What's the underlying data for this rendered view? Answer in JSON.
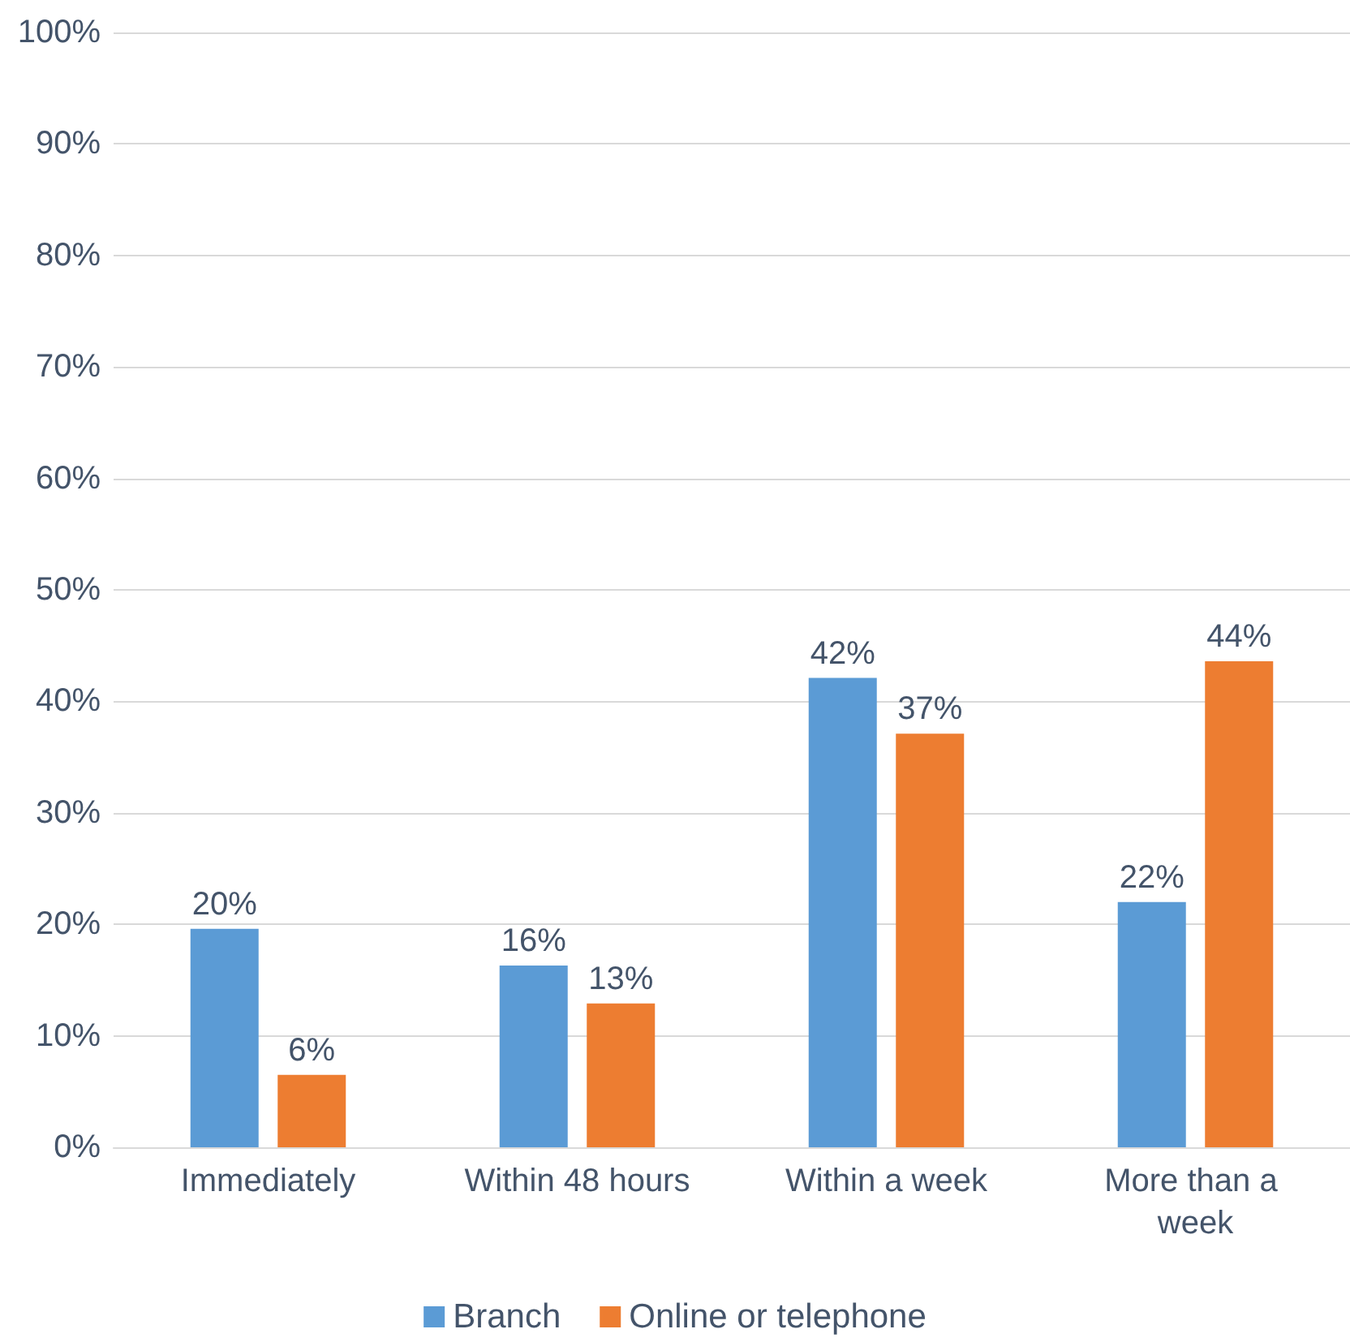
{
  "chart_data": {
    "type": "bar",
    "categories": [
      "Immediately",
      "Within 48 hours",
      "Within a week",
      "More than a week"
    ],
    "series": [
      {
        "name": "Branch",
        "color": "#5b9bd5",
        "values": [
          19.6,
          16.3,
          42.1,
          22
        ],
        "value_labels": [
          "20%",
          "16%",
          "42%",
          "22%"
        ]
      },
      {
        "name": "Online or telephone",
        "color": "#ed7d31",
        "values": [
          6.5,
          12.9,
          37.1,
          43.6
        ],
        "value_labels": [
          "6%",
          "13%",
          "37%",
          "44%"
        ]
      }
    ],
    "ylim": [
      0,
      100
    ],
    "yticks": [
      {
        "value": 0,
        "label": "0%"
      },
      {
        "value": 10,
        "label": "10%"
      },
      {
        "value": 20,
        "label": "20%"
      },
      {
        "value": 30,
        "label": "30%"
      },
      {
        "value": 40,
        "label": "40%"
      },
      {
        "value": 50,
        "label": "50%"
      },
      {
        "value": 60,
        "label": "60%"
      },
      {
        "value": 70,
        "label": "70%"
      },
      {
        "value": 80,
        "label": "80%"
      },
      {
        "value": 90,
        "label": "90%"
      },
      {
        "value": 100,
        "label": "100%"
      }
    ],
    "grid": "y",
    "legend": "bottom"
  }
}
